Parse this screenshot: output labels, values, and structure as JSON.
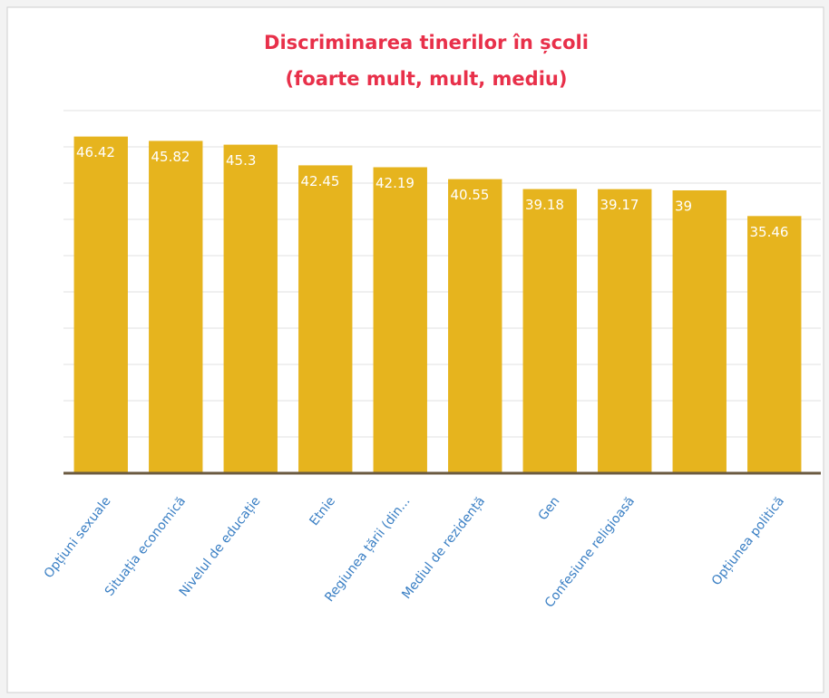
{
  "chart_data": {
    "type": "bar",
    "title": [
      "Discriminarea tinerilor în școli",
      "(foarte mult, mult, mediu)"
    ],
    "categories": [
      "Opțiuni sexuale",
      "Situația economică",
      "Nivelul de educație",
      "Etnie",
      "Regiunea țării (din...",
      "Mediul de rezidență",
      "Gen",
      "Confesiune religioasă",
      null,
      "Opțiunea politică"
    ],
    "values": [
      46.42,
      45.82,
      45.3,
      42.45,
      42.19,
      40.55,
      39.18,
      39.17,
      39,
      35.46
    ],
    "color": "#e6b41e",
    "ylim": [
      0,
      50
    ],
    "yticks": [
      0,
      5,
      10,
      15,
      20,
      25,
      30,
      35,
      40,
      45,
      50
    ],
    "grid": true
  }
}
